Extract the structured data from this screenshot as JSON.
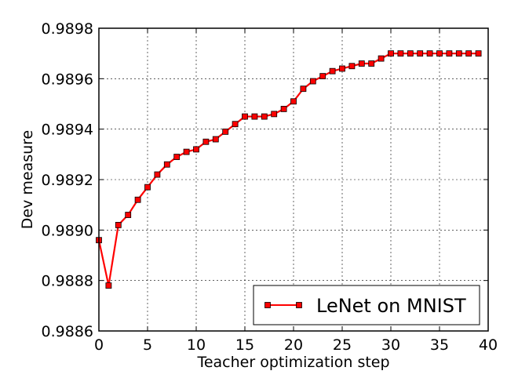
{
  "chart_data": {
    "type": "line",
    "xlabel": "Teacher optimization step",
    "ylabel": "Dev measure",
    "xlim": [
      0,
      40
    ],
    "ylim": [
      0.9886,
      0.9898
    ],
    "xticks": [
      0,
      5,
      10,
      15,
      20,
      25,
      30,
      35,
      40
    ],
    "xtick_labels": [
      "0",
      "5",
      "10",
      "15",
      "20",
      "25",
      "30",
      "35",
      "40"
    ],
    "yticks": [
      0.9886,
      0.9888,
      0.989,
      0.9892,
      0.9894,
      0.9896,
      0.9898
    ],
    "ytick_labels": [
      "0.9886",
      "0.9888",
      "0.9890",
      "0.9892",
      "0.9894",
      "0.9896",
      "0.9898"
    ],
    "grid": true,
    "legend_position": "lower-right",
    "series": [
      {
        "name": "LeNet on MNIST",
        "color": "#ff0000",
        "marker": "square",
        "x": [
          0,
          1,
          2,
          3,
          4,
          5,
          6,
          7,
          8,
          9,
          10,
          11,
          12,
          13,
          14,
          15,
          16,
          17,
          18,
          19,
          20,
          21,
          22,
          23,
          24,
          25,
          26,
          27,
          28,
          29,
          30,
          31,
          32,
          33,
          34,
          35,
          36,
          37,
          38,
          39
        ],
        "y": [
          0.98896,
          0.98878,
          0.98902,
          0.98906,
          0.98912,
          0.98917,
          0.98922,
          0.98926,
          0.98929,
          0.98931,
          0.98932,
          0.98935,
          0.98936,
          0.98939,
          0.98942,
          0.98945,
          0.98945,
          0.98945,
          0.98946,
          0.98948,
          0.98951,
          0.98956,
          0.98959,
          0.98961,
          0.98963,
          0.98964,
          0.98965,
          0.98966,
          0.98966,
          0.98968,
          0.9897,
          0.9897,
          0.9897,
          0.9897,
          0.9897,
          0.9897,
          0.9897,
          0.9897,
          0.9897,
          0.9897
        ]
      }
    ]
  }
}
